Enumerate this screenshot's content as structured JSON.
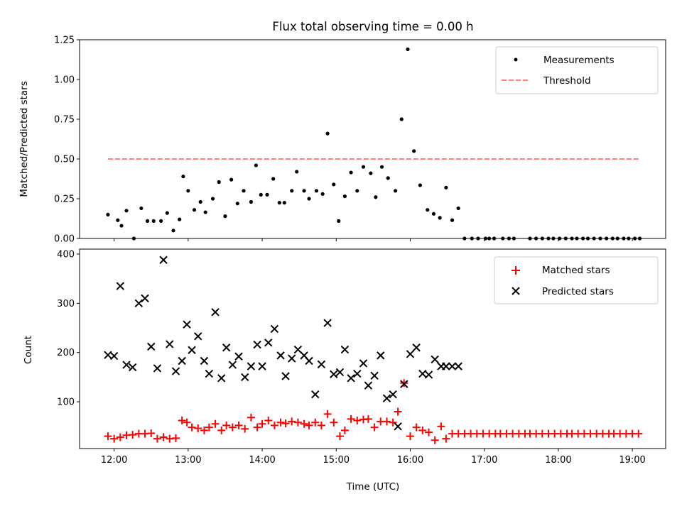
{
  "chart_data": [
    {
      "type": "scatter",
      "title": "Flux total observing time = 0.00 h",
      "xlabel": "",
      "ylabel": "Matched/Predicted stars",
      "xlim": [
        "11:32",
        "19:27"
      ],
      "ylim": [
        0,
        1.25
      ],
      "yticks": [
        "0.00",
        "0.25",
        "0.50",
        "0.75",
        "1.00",
        "1.25"
      ],
      "xticks": [
        "12:00",
        "13:00",
        "14:00",
        "15:00",
        "16:00",
        "17:00",
        "18:00",
        "19:00"
      ],
      "show_xtick_labels": false,
      "legend": {
        "placement": "top-right",
        "entries": [
          "Measurements",
          "Threshold"
        ]
      },
      "series": [
        {
          "name": "Measurements",
          "marker": "dot",
          "color": "#000000",
          "x": [
            "11:55",
            "12:03",
            "12:06",
            "12:10",
            "12:16",
            "12:22",
            "12:27",
            "12:32",
            "12:38",
            "12:43",
            "12:48",
            "12:53",
            "12:56",
            "13:00",
            "13:05",
            "13:10",
            "13:14",
            "13:20",
            "13:25",
            "13:30",
            "13:35",
            "13:40",
            "13:45",
            "13:51",
            "13:55",
            "13:59",
            "14:04",
            "14:09",
            "14:14",
            "14:18",
            "14:24",
            "14:28",
            "14:34",
            "14:38",
            "14:44",
            "14:49",
            "14:53",
            "14:58",
            "15:02",
            "15:07",
            "15:12",
            "15:17",
            "15:22",
            "15:28",
            "15:32",
            "15:37",
            "15:42",
            "15:48",
            "15:53",
            "15:58",
            "16:03",
            "16:08",
            "16:14",
            "16:19",
            "16:24",
            "16:29",
            "16:34",
            "16:39",
            "16:44",
            "16:50",
            "16:55",
            "17:01",
            "17:04",
            "17:08",
            "17:15",
            "17:20",
            "17:24",
            "17:37",
            "17:42",
            "17:47",
            "17:52",
            "17:56",
            "18:01",
            "18:06",
            "18:11",
            "18:15",
            "18:20",
            "18:24",
            "18:29",
            "18:34",
            "18:39",
            "18:44",
            "18:48",
            "18:53",
            "18:57",
            "19:02",
            "19:06"
          ],
          "y": [
            0.15,
            0.115,
            0.08,
            0.175,
            0.0,
            0.19,
            0.11,
            0.11,
            0.11,
            0.16,
            0.05,
            0.12,
            0.39,
            0.3,
            0.18,
            0.23,
            0.165,
            0.25,
            0.355,
            0.14,
            0.37,
            0.22,
            0.3,
            0.23,
            0.46,
            0.275,
            0.275,
            0.375,
            0.225,
            0.225,
            0.3,
            0.42,
            0.3,
            0.25,
            0.3,
            0.28,
            0.66,
            0.34,
            0.11,
            0.265,
            0.415,
            0.3,
            0.45,
            0.41,
            0.26,
            0.45,
            0.38,
            0.3,
            0.75,
            1.19,
            0.55,
            0.335,
            0.18,
            0.155,
            0.13,
            0.32,
            0.115,
            0.19,
            0.0,
            0.0,
            0.0,
            0.0,
            0.0,
            0.0,
            0.0,
            0.0,
            0.0,
            0.0,
            0.0,
            0.0,
            0.0,
            0.0,
            0.0,
            0.0,
            0.0,
            0.0,
            0.0,
            0.0,
            0.0,
            0.0,
            0.0,
            0.0,
            0.0,
            0.0,
            0.0,
            0.0,
            0.0
          ]
        },
        {
          "name": "Threshold",
          "style": "dashed",
          "color": "#ff7f7f",
          "x": [
            "11:55",
            "19:06"
          ],
          "y": [
            0.5,
            0.5
          ]
        }
      ]
    },
    {
      "type": "scatter",
      "title": "",
      "xlabel": "Time (UTC)",
      "ylabel": "Count",
      "xlim": [
        "11:32",
        "19:27"
      ],
      "ylim": [
        5,
        410
      ],
      "yticks": [
        "100",
        "200",
        "300",
        "400"
      ],
      "xticks": [
        "12:00",
        "13:00",
        "14:00",
        "15:00",
        "16:00",
        "17:00",
        "18:00",
        "19:00"
      ],
      "show_xtick_labels": true,
      "legend": {
        "placement": "top-right",
        "entries": [
          "Matched stars",
          "Predicted stars"
        ]
      },
      "series": [
        {
          "name": "Matched stars",
          "marker": "plus",
          "color": "#ff0000",
          "x": [
            "11:55",
            "12:00",
            "12:05",
            "12:10",
            "12:15",
            "12:20",
            "12:25",
            "12:30",
            "12:35",
            "12:40",
            "12:45",
            "12:50",
            "12:55",
            "12:59",
            "13:03",
            "13:08",
            "13:13",
            "13:17",
            "13:22",
            "13:27",
            "13:31",
            "13:36",
            "13:41",
            "13:46",
            "13:51",
            "13:56",
            "14:00",
            "14:05",
            "14:10",
            "14:15",
            "14:19",
            "14:24",
            "14:29",
            "14:34",
            "14:38",
            "14:43",
            "14:48",
            "14:53",
            "14:58",
            "15:03",
            "15:07",
            "15:12",
            "15:17",
            "15:22",
            "15:26",
            "15:31",
            "15:36",
            "15:41",
            "15:46",
            "15:50",
            "15:55",
            "16:00",
            "16:05",
            "16:10",
            "16:15",
            "16:20",
            "16:25",
            "16:29",
            "16:34",
            "16:39",
            "16:44",
            "16:49",
            "16:54",
            "16:59",
            "17:04",
            "17:09",
            "17:13",
            "17:18",
            "17:23",
            "17:28",
            "17:33",
            "17:37",
            "17:42",
            "17:47",
            "17:52",
            "17:57",
            "18:02",
            "18:07",
            "18:11",
            "18:16",
            "18:21",
            "18:26",
            "18:31",
            "18:36",
            "18:41",
            "18:45",
            "18:50",
            "18:55",
            "19:00",
            "19:05"
          ],
          "y": [
            30,
            25,
            28,
            32,
            33,
            35,
            35,
            36,
            25,
            28,
            25,
            26,
            62,
            58,
            48,
            46,
            42,
            48,
            55,
            42,
            52,
            48,
            52,
            45,
            68,
            48,
            55,
            62,
            52,
            58,
            56,
            60,
            58,
            55,
            52,
            58,
            52,
            75,
            58,
            30,
            42,
            65,
            62,
            64,
            65,
            48,
            60,
            60,
            58,
            80,
            138,
            30,
            48,
            42,
            38,
            22,
            50,
            25,
            35,
            35,
            35,
            35,
            35,
            35,
            35,
            35,
            35,
            35,
            35,
            35,
            35,
            35,
            35,
            35,
            35,
            35,
            35,
            35,
            35,
            35,
            35,
            35,
            35,
            35,
            35,
            35,
            35,
            35,
            35,
            35
          ]
        },
        {
          "name": "Predicted stars",
          "marker": "x",
          "color": "#000000",
          "x": [
            "11:55",
            "12:00",
            "12:05",
            "12:10",
            "12:15",
            "12:20",
            "12:25",
            "12:30",
            "12:35",
            "12:40",
            "12:45",
            "12:50",
            "12:55",
            "12:59",
            "13:03",
            "13:08",
            "13:13",
            "13:17",
            "13:22",
            "13:27",
            "13:31",
            "13:36",
            "13:41",
            "13:46",
            "13:51",
            "13:56",
            "14:00",
            "14:05",
            "14:10",
            "14:15",
            "14:19",
            "14:24",
            "14:29",
            "14:34",
            "14:38",
            "14:43",
            "14:48",
            "14:53",
            "14:58",
            "15:03",
            "15:07",
            "15:12",
            "15:17",
            "15:22",
            "15:26",
            "15:31",
            "15:36",
            "15:41",
            "15:46",
            "15:50",
            "15:55",
            "16:00",
            "16:05",
            "16:10",
            "16:15",
            "16:20",
            "16:25",
            "16:29",
            "16:34",
            "16:39"
          ],
          "y": [
            195,
            193,
            335,
            175,
            170,
            300,
            310,
            212,
            168,
            388,
            217,
            162,
            183,
            257,
            205,
            233,
            183,
            157,
            282,
            148,
            210,
            175,
            192,
            150,
            172,
            216,
            172,
            220,
            248,
            194,
            152,
            188,
            206,
            194,
            183,
            115,
            176,
            260,
            156,
            160,
            206,
            148,
            157,
            178,
            133,
            153,
            194,
            107,
            115,
            50,
            136,
            197,
            210,
            157,
            155,
            186,
            172,
            172,
            172,
            172
          ]
        }
      ]
    }
  ]
}
